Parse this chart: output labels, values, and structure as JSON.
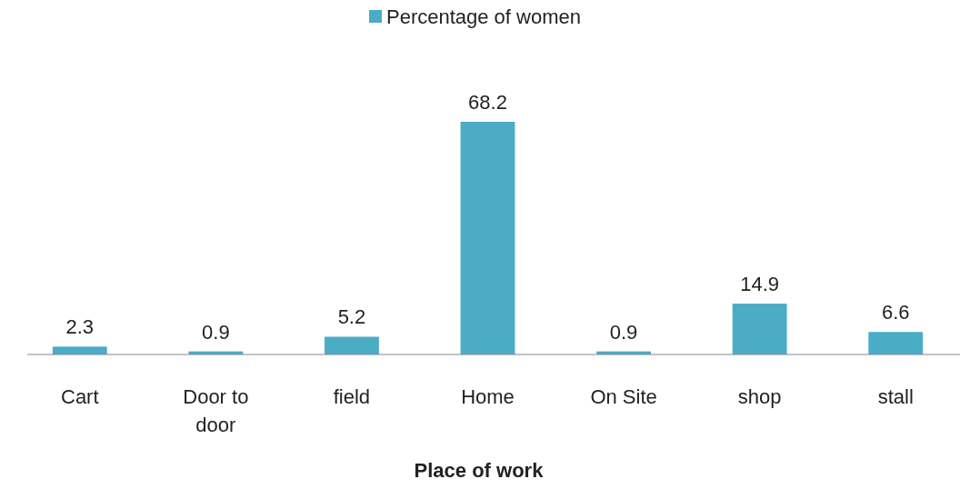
{
  "chart_data": {
    "type": "bar",
    "xlabel": "Place of work",
    "categories": [
      "Cart",
      "Door to door",
      "field",
      "Home",
      "On Site",
      "shop",
      "stall"
    ],
    "series": [
      {
        "name": "Percentage of women",
        "color": "#4bacc6",
        "values": [
          2.3,
          0.9,
          5.2,
          68.2,
          0.9,
          14.9,
          6.6
        ]
      }
    ],
    "data_labels": true,
    "legend": "top"
  }
}
